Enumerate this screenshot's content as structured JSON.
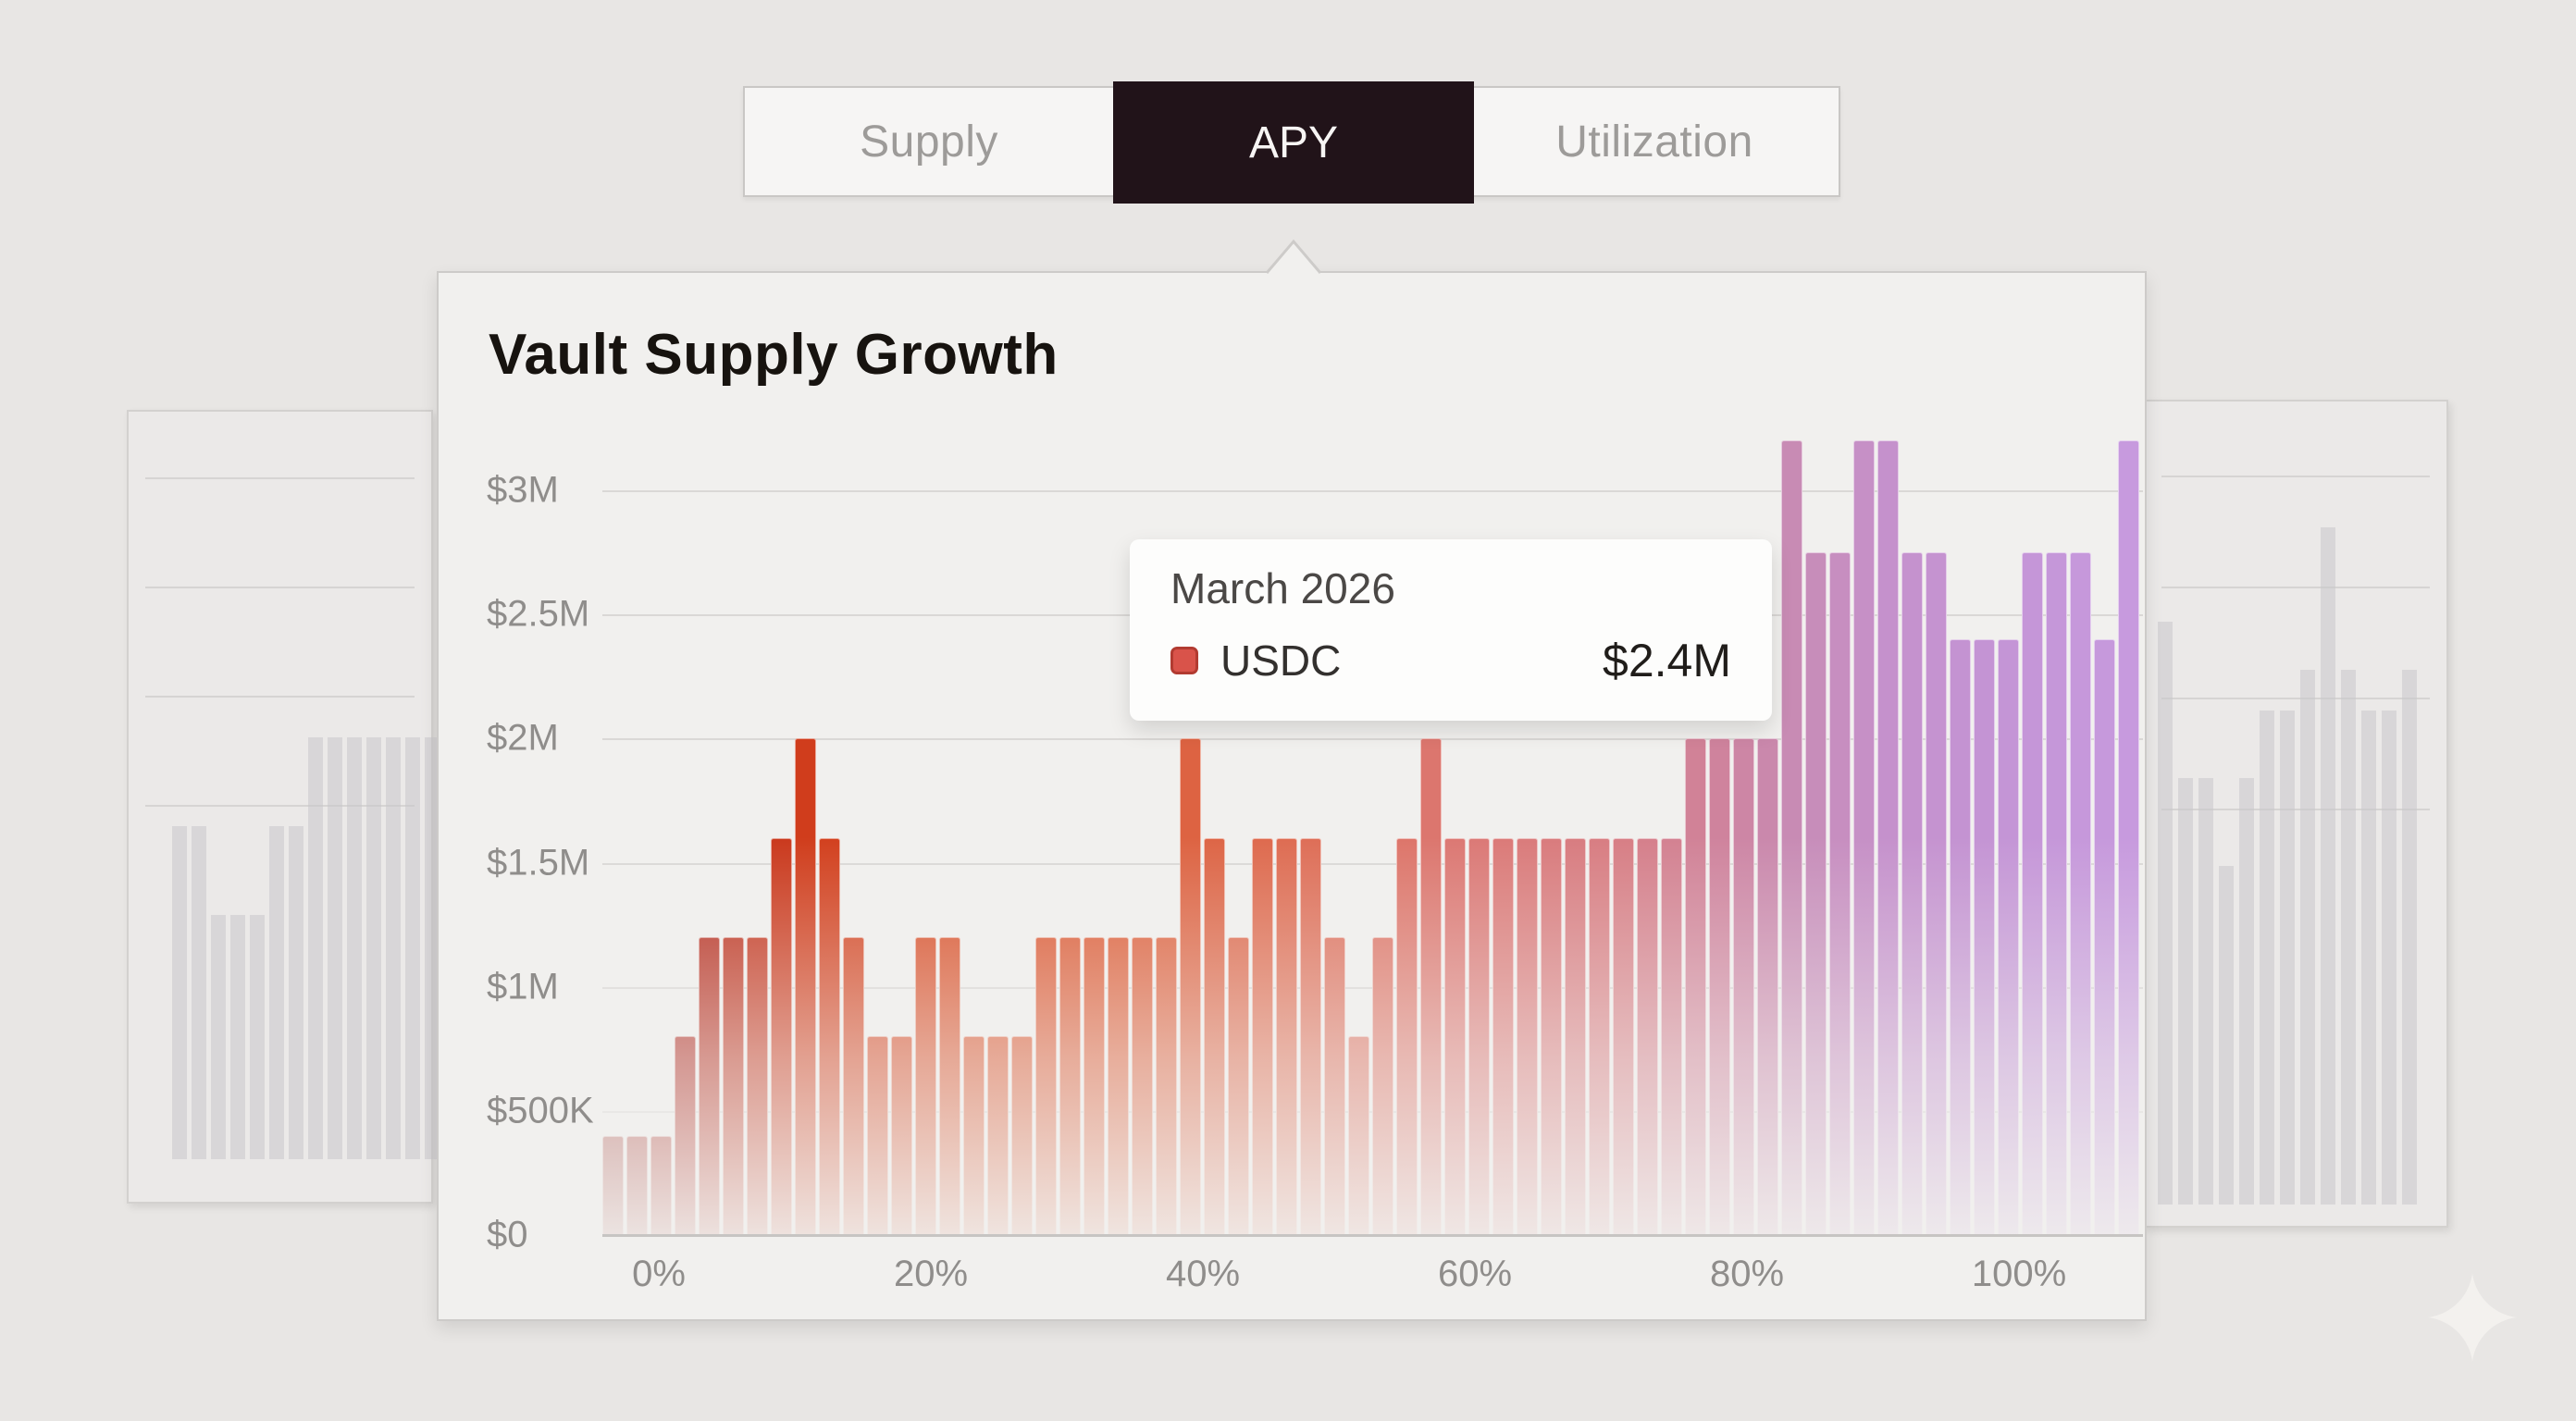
{
  "tabs": {
    "items": [
      {
        "label": "Supply",
        "active": false
      },
      {
        "label": "APY",
        "active": true
      },
      {
        "label": "Utilization",
        "active": false
      }
    ],
    "active_bg": "#211319"
  },
  "panel": {
    "title": "Vault Supply Growth"
  },
  "tooltip": {
    "date": "March 2026",
    "series": "USDC",
    "value": "$2.4M",
    "swatch_color": "#d9534a",
    "swatch_border_color": "#b23b31"
  },
  "chart_data": {
    "type": "bar",
    "title": "Vault Supply Growth",
    "xlabel": "",
    "ylabel": "",
    "grid": true,
    "legend": "none",
    "x_tick_labels": [
      "0%",
      "20%",
      "40%",
      "60%",
      "80%",
      "100%"
    ],
    "y_tick_labels": [
      "$0",
      "$500K",
      "$1M",
      "$1.5M",
      "$2M",
      "$2.5M",
      "$3M"
    ],
    "y_ticks_millions": [
      0,
      0.5,
      1,
      1.5,
      2,
      2.5,
      3
    ],
    "ylim_millions": [
      0,
      3.3
    ],
    "values_millions": [
      0.4,
      0.4,
      0.4,
      0.8,
      1.2,
      1.2,
      1.2,
      1.6,
      2.0,
      1.6,
      1.2,
      0.8,
      0.8,
      1.2,
      1.2,
      0.8,
      0.8,
      0.8,
      1.2,
      1.2,
      1.2,
      1.2,
      1.2,
      1.2,
      2.0,
      1.6,
      1.2,
      1.6,
      1.6,
      1.6,
      1.2,
      0.8,
      1.2,
      1.6,
      2.0,
      1.6,
      1.6,
      1.6,
      1.6,
      1.6,
      1.6,
      1.6,
      1.6,
      1.6,
      1.6,
      2.0,
      2.0,
      2.0,
      2.0,
      3.2,
      2.75,
      2.75,
      3.2,
      3.2,
      2.75,
      2.75,
      2.4,
      2.4,
      2.4,
      2.75,
      2.75,
      2.75,
      2.4,
      3.2
    ],
    "bar_color_stops": [
      {
        "i": 0,
        "c": "#aa4a44"
      },
      {
        "i": 3,
        "c": "#b02a20"
      },
      {
        "i": 8,
        "c": "#d03d1c"
      },
      {
        "i": 14,
        "c": "#d9512a"
      },
      {
        "i": 21,
        "c": "#dc5c36"
      },
      {
        "i": 28,
        "c": "#de6c52"
      },
      {
        "i": 35,
        "c": "#dc7873"
      },
      {
        "i": 42,
        "c": "#d77e85"
      },
      {
        "i": 46,
        "c": "#cf839d"
      },
      {
        "i": 49,
        "c": "#c88bb4"
      },
      {
        "i": 53,
        "c": "#c591cc"
      },
      {
        "i": 58,
        "c": "#c495d6"
      },
      {
        "i": 63,
        "c": "#c79ade"
      }
    ],
    "highlighted_point": {
      "x_label": "March 2026",
      "series": "USDC",
      "value_millions": 2.4
    }
  },
  "background_charts": {
    "left": {
      "type": "bar",
      "bar_heights_relative": [
        0.79,
        0.79,
        0.58,
        0.58,
        0.58,
        0.79,
        0.79,
        1,
        1,
        1,
        1,
        1,
        1,
        1
      ],
      "gridline_count": 4,
      "bar_color": "#c9c7cb"
    },
    "right": {
      "type": "bar",
      "bar_heights_relative": [
        0.86,
        0.63,
        0.63,
        0.5,
        0.63,
        0.73,
        0.73,
        0.79,
        1,
        0.79,
        0.73,
        0.73,
        0.79
      ],
      "gridline_count": 4,
      "bar_color": "#c9c7cb"
    }
  },
  "decor": {
    "sparkle_color": "#f3f1ee"
  }
}
